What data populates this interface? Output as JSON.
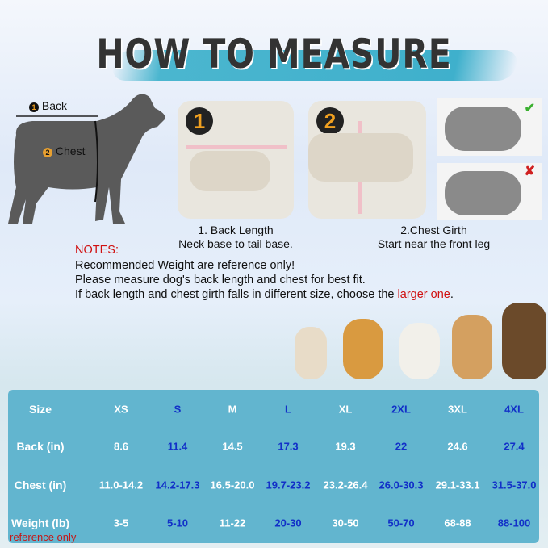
{
  "title": "HOW TO MEASURE",
  "diagram": {
    "back_label": "Back",
    "chest_label": "Chest",
    "back_num": "1",
    "chest_num": "2"
  },
  "steps": [
    {
      "num": "1",
      "title": "1. Back Length",
      "desc": "Neck base to tail base."
    },
    {
      "num": "2",
      "title": "2.Chest Girth",
      "desc": "Start near the front leg"
    }
  ],
  "examples": [
    {
      "status": "correct",
      "icon": "check-icon"
    },
    {
      "status": "incorrect",
      "icon": "cross-icon"
    }
  ],
  "notes": {
    "heading": "NOTES:",
    "line1": "Recommended Weight are reference only!",
    "line2": "Please measure dog's back length and chest for best fit.",
    "line3_prefix": "If back length and chest girth falls in different size, choose the ",
    "line3_highlight": "larger one",
    "line3_suffix": "."
  },
  "colors": {
    "table_bg": "#62b5cf",
    "blue_text": "#1230c8",
    "note_red": "#d01010",
    "brush": "#4bb6cf"
  },
  "table": {
    "rows": [
      {
        "label": "Size",
        "values": [
          "XS",
          "S",
          "M",
          "L",
          "XL",
          "2XL",
          "3XL",
          "4XL"
        ]
      },
      {
        "label": "Back  (in)",
        "values": [
          "8.6",
          "11.4",
          "14.5",
          "17.3",
          "19.3",
          "22",
          "24.6",
          "27.4"
        ]
      },
      {
        "label": "Chest  (in)",
        "values": [
          "11.0-14.2",
          "14.2-17.3",
          "16.5-20.0",
          "19.7-23.2",
          "23.2-26.4",
          "26.0-30.3",
          "29.1-33.1",
          "31.5-37.0"
        ]
      },
      {
        "label": "Weight  (lb)",
        "values": [
          "3-5",
          "5-10",
          "11-22",
          "20-30",
          "30-50",
          "50-70",
          "68-88",
          "88-100"
        ]
      }
    ],
    "footnote": "reference only"
  }
}
